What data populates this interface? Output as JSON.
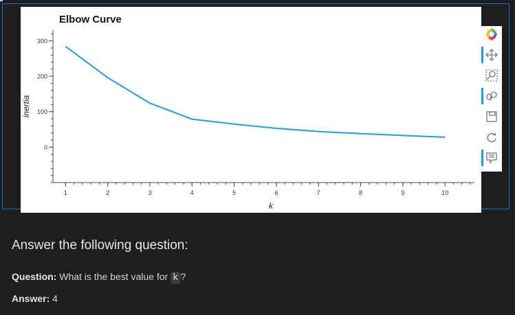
{
  "chart_data": {
    "type": "line",
    "title": "Elbow Curve",
    "xlabel": "k",
    "ylabel": "inertia",
    "x": [
      1,
      2,
      3,
      4,
      5,
      6,
      7,
      8,
      9,
      10
    ],
    "series": [
      {
        "values": [
          284,
          196,
          124,
          79,
          65,
          53,
          44,
          38,
          33,
          28
        ]
      }
    ],
    "xlim": [
      0.7,
      10.7
    ],
    "ylim": [
      -100,
      330
    ],
    "x_ticks": [
      "1",
      "2",
      "3",
      "4",
      "5",
      "6",
      "7",
      "8",
      "9",
      "10"
    ],
    "y_ticks": [
      "0",
      "100",
      "200",
      "300"
    ],
    "line_color": "#1aa0dc",
    "grid": false
  },
  "toolbar": {
    "items": [
      "bokeh-logo-icon",
      "pan-icon",
      "box-zoom-icon",
      "wheel-zoom-icon",
      "save-icon",
      "reset-icon",
      "hover-icon"
    ],
    "active_color": "#1a9fe0"
  },
  "question": {
    "heading": "Answer the following question:",
    "question_label": "Question:",
    "question_text_before": "What is the best value for",
    "question_code": "k",
    "question_text_after": "?",
    "answer_label": "Answer:",
    "answer_value": "4"
  }
}
